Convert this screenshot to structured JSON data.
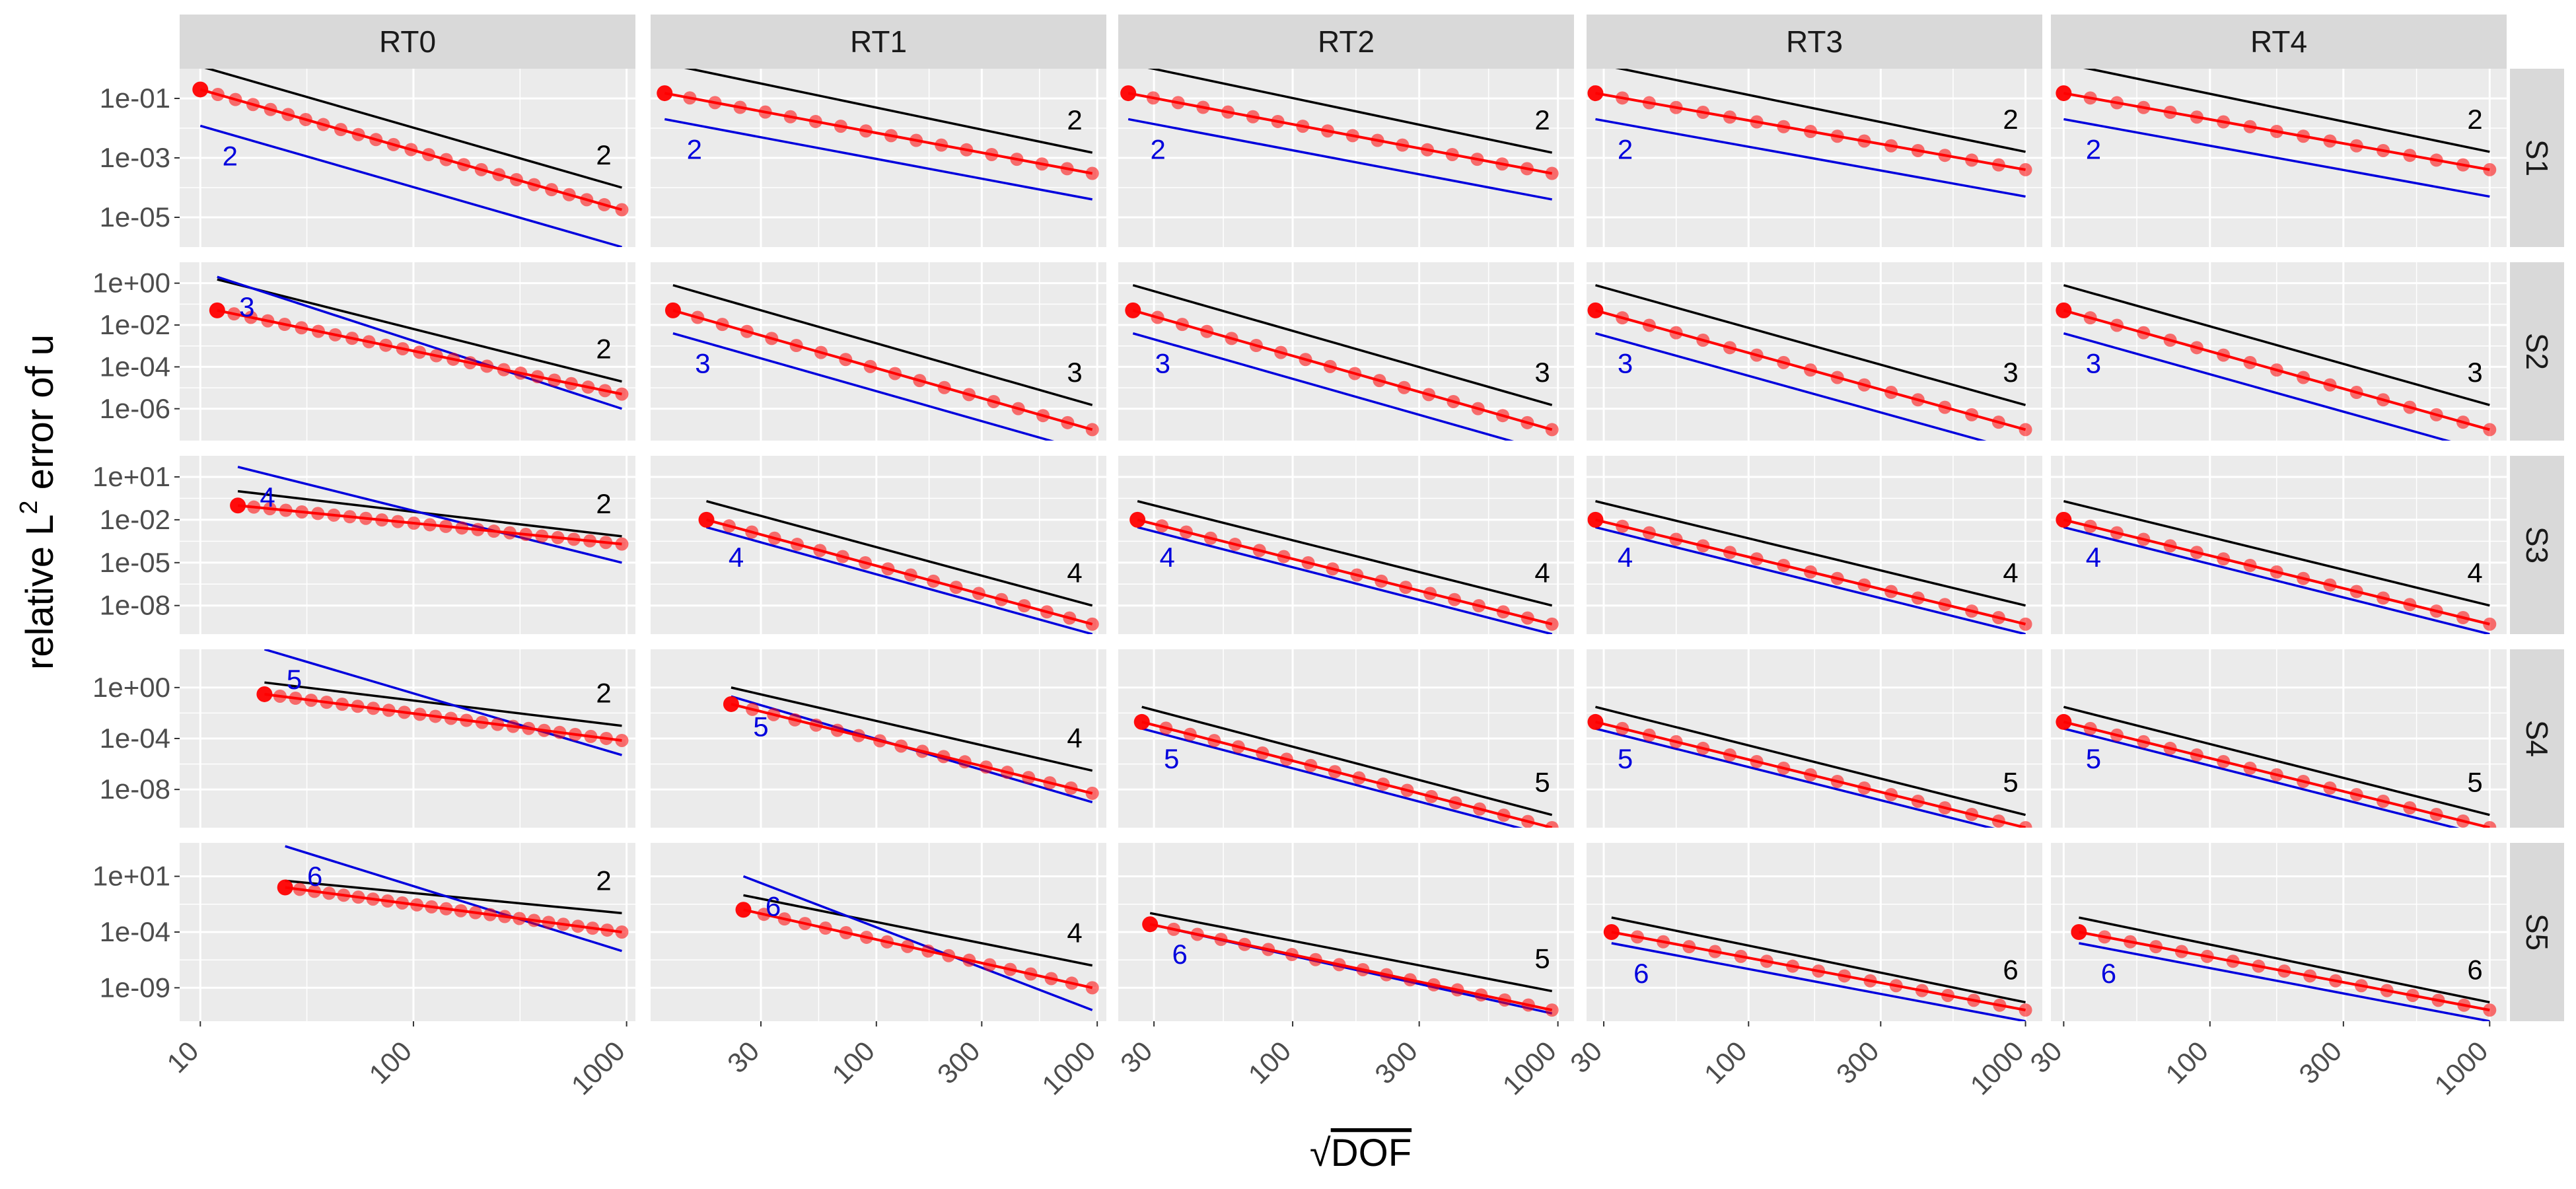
{
  "chart_data": {
    "type": "line",
    "title": "",
    "ylabel_prefix": "relative L",
    "ylabel_sup": "2",
    "ylabel_suffix": " error of u",
    "xlabel_sqrt": "√",
    "xlabel_text": "DOF",
    "x_scale": "log",
    "y_scale": "log",
    "columns": [
      "RT0",
      "RT1",
      "RT2",
      "RT3",
      "RT4"
    ],
    "rows": [
      "S1",
      "S2",
      "S3",
      "S4",
      "S5"
    ],
    "colors": {
      "panel_bg": "#ebebeb",
      "grid": "#ffffff",
      "strip_bg": "#d9d9d9",
      "error_points": "#ff0000",
      "black_ref": "#000000",
      "blue_ref": "#0000dd",
      "blue_label": "#0000dd",
      "black_label": "#000000"
    },
    "xlim": [
      [
        8.0,
        1100
      ],
      [
        9.5,
        1100
      ],
      [
        22,
        1150
      ],
      [
        26,
        1150
      ],
      [
        27,
        1150
      ]
    ],
    "xticks": [
      {
        "values": [
          10,
          100,
          1000
        ],
        "labels": [
          "10",
          "100",
          "1000"
        ]
      },
      {
        "values": [
          30,
          100,
          300,
          1000
        ],
        "labels": [
          "30",
          "100",
          "300",
          "1000"
        ]
      },
      {
        "values": [
          30,
          100,
          300,
          1000
        ],
        "labels": [
          "30",
          "100",
          "300",
          "1000"
        ]
      },
      {
        "values": [
          30,
          100,
          300,
          1000
        ],
        "labels": [
          "30",
          "100",
          "300",
          "1000"
        ]
      },
      {
        "values": [
          30,
          100,
          300,
          1000
        ],
        "labels": [
          "30",
          "100",
          "300",
          "1000"
        ]
      }
    ],
    "ylim": [
      [
        1e-06,
        1.0
      ],
      [
        3e-08,
        10.0
      ],
      [
        1e-10,
        300.0
      ],
      [
        1e-11,
        1000.0
      ],
      [
        1e-12,
        10000.0
      ]
    ],
    "yticks": [
      {
        "values": [
          0.1,
          0.001,
          1e-05
        ],
        "labels": [
          "1e-01",
          "1e-03",
          "1e-05"
        ]
      },
      {
        "values": [
          1.0,
          0.01,
          0.0001,
          1e-06
        ],
        "labels": [
          "1e+00",
          "1e-02",
          "1e-04",
          "1e-06"
        ]
      },
      {
        "values": [
          10.0,
          0.01,
          1e-05,
          1e-08
        ],
        "labels": [
          "1e+01",
          "1e-02",
          "1e-05",
          "1e-08"
        ]
      },
      {
        "values": [
          1.0,
          0.0001,
          1e-08
        ],
        "labels": [
          "1e+00",
          "1e-04",
          "1e-08"
        ]
      },
      {
        "values": [
          10.0,
          0.0001,
          1e-09
        ],
        "labels": [
          "1e+01",
          "1e-04",
          "1e-09"
        ]
      }
    ],
    "panels": [
      {
        "row": "S1",
        "col": "RT0",
        "x_start": 10,
        "x_end": 950,
        "y_start": 0.2,
        "y_end": 1.8e-05,
        "n_points": 25,
        "black_slope": "2",
        "blue_slope": "2",
        "black_ref": {
          "x1": 10,
          "y1": 1.2,
          "x2": 950,
          "y2": 0.0001
        },
        "blue_ref": {
          "x1": 10,
          "y1": 0.012,
          "x2": 950,
          "y2": 1e-06
        }
      },
      {
        "row": "S1",
        "col": "RT1",
        "x_start": 11,
        "x_end": 950,
        "y_start": 0.15,
        "y_end": 0.0003,
        "n_points": 18,
        "black_slope": "2",
        "blue_slope": "2",
        "black_ref": {
          "x1": 11,
          "y1": 1.5,
          "x2": 950,
          "y2": 0.0015
        },
        "blue_ref": {
          "x1": 11,
          "y1": 0.02,
          "x2": 950,
          "y2": 4e-05
        }
      },
      {
        "row": "S1",
        "col": "RT2",
        "x_start": 24,
        "x_end": 950,
        "y_start": 0.15,
        "y_end": 0.0003,
        "n_points": 18,
        "black_slope": "2",
        "blue_slope": "2",
        "black_ref": {
          "x1": 24,
          "y1": 1.5,
          "x2": 950,
          "y2": 0.0015
        },
        "blue_ref": {
          "x1": 24,
          "y1": 0.02,
          "x2": 950,
          "y2": 4e-05
        }
      },
      {
        "row": "S1",
        "col": "RT3",
        "x_start": 28,
        "x_end": 1000,
        "y_start": 0.15,
        "y_end": 0.0004,
        "n_points": 17,
        "black_slope": "2",
        "blue_slope": "2",
        "black_ref": {
          "x1": 28,
          "y1": 1.5,
          "x2": 1000,
          "y2": 0.0016
        },
        "blue_ref": {
          "x1": 28,
          "y1": 0.02,
          "x2": 1000,
          "y2": 5e-05
        }
      },
      {
        "row": "S1",
        "col": "RT4",
        "x_start": 30,
        "x_end": 1000,
        "y_start": 0.15,
        "y_end": 0.0004,
        "n_points": 17,
        "black_slope": "2",
        "blue_slope": "2",
        "black_ref": {
          "x1": 30,
          "y1": 1.5,
          "x2": 1000,
          "y2": 0.0016
        },
        "blue_ref": {
          "x1": 30,
          "y1": 0.02,
          "x2": 1000,
          "y2": 5e-05
        }
      },
      {
        "row": "S2",
        "col": "RT0",
        "x_start": 12,
        "x_end": 950,
        "y_start": 0.05,
        "y_end": 5e-06,
        "n_points": 25,
        "black_slope": "2",
        "blue_slope": "3",
        "black_ref": {
          "x1": 12,
          "y1": 1.5,
          "x2": 950,
          "y2": 2e-05
        },
        "blue_ref": {
          "x1": 12,
          "y1": 2.0,
          "x2": 950,
          "y2": 1e-06
        }
      },
      {
        "row": "S2",
        "col": "RT1",
        "x_start": 12,
        "x_end": 950,
        "y_start": 0.05,
        "y_end": 1e-07,
        "n_points": 18,
        "black_slope": "3",
        "blue_slope": "3",
        "black_ref": {
          "x1": 12,
          "y1": 0.8,
          "x2": 950,
          "y2": 1.5e-06
        },
        "blue_ref": {
          "x1": 12,
          "y1": 0.004,
          "x2": 950,
          "y2": 8e-09
        }
      },
      {
        "row": "S2",
        "col": "RT2",
        "x_start": 25,
        "x_end": 950,
        "y_start": 0.05,
        "y_end": 1e-07,
        "n_points": 18,
        "black_slope": "3",
        "blue_slope": "3",
        "black_ref": {
          "x1": 25,
          "y1": 0.8,
          "x2": 950,
          "y2": 1.5e-06
        },
        "blue_ref": {
          "x1": 25,
          "y1": 0.004,
          "x2": 950,
          "y2": 8e-09
        }
      },
      {
        "row": "S2",
        "col": "RT3",
        "x_start": 28,
        "x_end": 1000,
        "y_start": 0.05,
        "y_end": 1e-07,
        "n_points": 17,
        "black_slope": "3",
        "blue_slope": "3",
        "black_ref": {
          "x1": 28,
          "y1": 0.8,
          "x2": 1000,
          "y2": 1.5e-06
        },
        "blue_ref": {
          "x1": 28,
          "y1": 0.004,
          "x2": 1000,
          "y2": 8e-09
        }
      },
      {
        "row": "S2",
        "col": "RT4",
        "x_start": 30,
        "x_end": 1000,
        "y_start": 0.05,
        "y_end": 1e-07,
        "n_points": 17,
        "black_slope": "3",
        "blue_slope": "3",
        "black_ref": {
          "x1": 30,
          "y1": 0.8,
          "x2": 1000,
          "y2": 1.5e-06
        },
        "blue_ref": {
          "x1": 30,
          "y1": 0.004,
          "x2": 1000,
          "y2": 8e-09
        }
      },
      {
        "row": "S3",
        "col": "RT0",
        "x_start": 15,
        "x_end": 950,
        "y_start": 0.1,
        "y_end": 0.0002,
        "n_points": 25,
        "black_slope": "2",
        "blue_slope": "4",
        "black_ref": {
          "x1": 15,
          "y1": 1.0,
          "x2": 950,
          "y2": 0.0007
        },
        "blue_ref": {
          "x1": 15,
          "y1": 50,
          "x2": 950,
          "y2": 1e-05
        }
      },
      {
        "row": "S3",
        "col": "RT1",
        "x_start": 17,
        "x_end": 950,
        "y_start": 0.01,
        "y_end": 5e-10,
        "n_points": 18,
        "black_slope": "4",
        "blue_slope": "4",
        "black_ref": {
          "x1": 17,
          "y1": 0.2,
          "x2": 950,
          "y2": 1e-08
        },
        "blue_ref": {
          "x1": 17,
          "y1": 0.003,
          "x2": 950,
          "y2": 1e-10
        }
      },
      {
        "row": "S3",
        "col": "RT2",
        "x_start": 26,
        "x_end": 950,
        "y_start": 0.01,
        "y_end": 5e-10,
        "n_points": 18,
        "black_slope": "4",
        "blue_slope": "4",
        "black_ref": {
          "x1": 26,
          "y1": 0.2,
          "x2": 950,
          "y2": 1e-08
        },
        "blue_ref": {
          "x1": 26,
          "y1": 0.003,
          "x2": 950,
          "y2": 1e-10
        }
      },
      {
        "row": "S3",
        "col": "RT3",
        "x_start": 28,
        "x_end": 1000,
        "y_start": 0.01,
        "y_end": 5e-10,
        "n_points": 17,
        "black_slope": "4",
        "blue_slope": "4",
        "black_ref": {
          "x1": 28,
          "y1": 0.2,
          "x2": 1000,
          "y2": 1e-08
        },
        "blue_ref": {
          "x1": 28,
          "y1": 0.003,
          "x2": 1000,
          "y2": 1e-10
        }
      },
      {
        "row": "S3",
        "col": "RT4",
        "x_start": 30,
        "x_end": 1000,
        "y_start": 0.01,
        "y_end": 5e-10,
        "n_points": 17,
        "black_slope": "4",
        "blue_slope": "4",
        "black_ref": {
          "x1": 30,
          "y1": 0.2,
          "x2": 1000,
          "y2": 1e-08
        },
        "blue_ref": {
          "x1": 30,
          "y1": 0.003,
          "x2": 1000,
          "y2": 1e-10
        }
      },
      {
        "row": "S4",
        "col": "RT0",
        "x_start": 20,
        "x_end": 950,
        "y_start": 0.3,
        "y_end": 7e-05,
        "n_points": 24,
        "black_slope": "2",
        "blue_slope": "5",
        "black_ref": {
          "x1": 20,
          "y1": 2.5,
          "x2": 950,
          "y2": 0.001
        },
        "blue_ref": {
          "x1": 20,
          "y1": 1000,
          "x2": 950,
          "y2": 5e-06
        }
      },
      {
        "row": "S4",
        "col": "RT1",
        "x_start": 22,
        "x_end": 950,
        "y_start": 0.05,
        "y_end": 5e-09,
        "n_points": 18,
        "black_slope": "4",
        "blue_slope": "5",
        "black_ref": {
          "x1": 22,
          "y1": 1.0,
          "x2": 950,
          "y2": 3e-07
        },
        "blue_ref": {
          "x1": 22,
          "y1": 0.2,
          "x2": 950,
          "y2": 1e-09
        }
      },
      {
        "row": "S4",
        "col": "RT2",
        "x_start": 27,
        "x_end": 950,
        "y_start": 0.002,
        "y_end": 1e-11,
        "n_points": 18,
        "black_slope": "5",
        "blue_slope": "5",
        "black_ref": {
          "x1": 27,
          "y1": 0.03,
          "x2": 950,
          "y2": 1e-10
        },
        "blue_ref": {
          "x1": 27,
          "y1": 0.0006,
          "x2": 950,
          "y2": 2e-12
        }
      },
      {
        "row": "S4",
        "col": "RT3",
        "x_start": 28,
        "x_end": 1000,
        "y_start": 0.002,
        "y_end": 1e-11,
        "n_points": 17,
        "black_slope": "5",
        "blue_slope": "5",
        "black_ref": {
          "x1": 28,
          "y1": 0.03,
          "x2": 1000,
          "y2": 1e-10
        },
        "blue_ref": {
          "x1": 28,
          "y1": 0.0006,
          "x2": 1000,
          "y2": 2e-12
        }
      },
      {
        "row": "S4",
        "col": "RT4",
        "x_start": 30,
        "x_end": 1000,
        "y_start": 0.002,
        "y_end": 1e-11,
        "n_points": 17,
        "black_slope": "5",
        "blue_slope": "5",
        "black_ref": {
          "x1": 30,
          "y1": 0.03,
          "x2": 1000,
          "y2": 1e-10
        },
        "blue_ref": {
          "x1": 30,
          "y1": 0.0006,
          "x2": 1000,
          "y2": 2e-12
        }
      },
      {
        "row": "S5",
        "col": "RT0",
        "x_start": 25,
        "x_end": 950,
        "y_start": 1.0,
        "y_end": 0.0001,
        "n_points": 24,
        "black_slope": "2",
        "blue_slope": "6",
        "black_ref": {
          "x1": 25,
          "y1": 4.0,
          "x2": 950,
          "y2": 0.005
        },
        "blue_ref": {
          "x1": 25,
          "y1": 5000,
          "x2": 950,
          "y2": 2e-06
        }
      },
      {
        "row": "S5",
        "col": "RT1",
        "x_start": 25,
        "x_end": 950,
        "y_start": 0.01,
        "y_end": 1e-09,
        "n_points": 18,
        "black_slope": "4",
        "blue_slope": "6",
        "black_ref": {
          "x1": 25,
          "y1": 0.2,
          "x2": 950,
          "y2": 1e-07
        },
        "blue_ref": {
          "x1": 25,
          "y1": 10,
          "x2": 950,
          "y2": 1e-11
        }
      },
      {
        "row": "S5",
        "col": "RT2",
        "x_start": 29,
        "x_end": 950,
        "y_start": 0.0005,
        "y_end": 1e-11,
        "n_points": 18,
        "black_slope": "5",
        "blue_slope": "6",
        "black_ref": {
          "x1": 29,
          "y1": 0.005,
          "x2": 950,
          "y2": 5e-10
        },
        "blue_ref": {
          "x1": 29,
          "y1": 0.0005,
          "x2": 950,
          "y2": 5e-12
        }
      },
      {
        "row": "S5",
        "col": "RT3",
        "x_start": 32,
        "x_end": 1000,
        "y_start": 0.0001,
        "y_end": 1e-11,
        "n_points": 17,
        "black_slope": "6",
        "blue_slope": "6",
        "black_ref": {
          "x1": 32,
          "y1": 0.002,
          "x2": 1000,
          "y2": 5e-11
        },
        "blue_ref": {
          "x1": 32,
          "y1": 1e-05,
          "x2": 1000,
          "y2": 1e-12
        }
      },
      {
        "row": "S5",
        "col": "RT4",
        "x_start": 34,
        "x_end": 1000,
        "y_start": 0.0001,
        "y_end": 1e-11,
        "n_points": 17,
        "black_slope": "6",
        "blue_slope": "6",
        "black_ref": {
          "x1": 34,
          "y1": 0.002,
          "x2": 1000,
          "y2": 5e-11
        },
        "blue_ref": {
          "x1": 34,
          "y1": 1e-05,
          "x2": 1000,
          "y2": 1e-12
        }
      }
    ]
  }
}
